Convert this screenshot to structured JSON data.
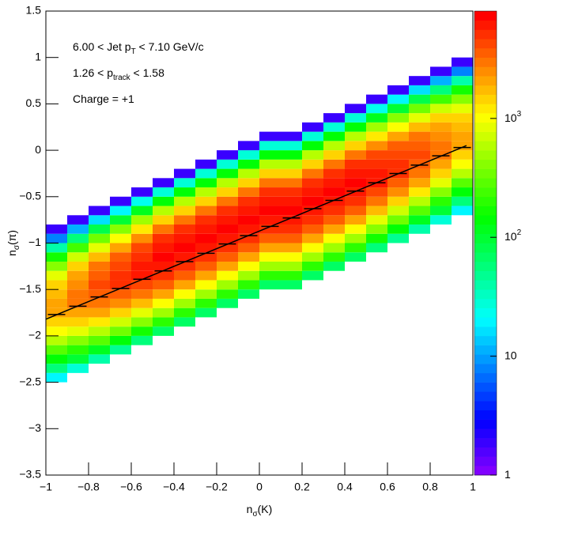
{
  "chart_data": {
    "type": "heatmap",
    "annotations": [
      [
        {
          "t": "6.00 < Jet p"
        },
        {
          "t": "T",
          "sub": true
        },
        {
          "t": " < 7.10 GeV/c"
        }
      ],
      [
        {
          "t": "1.26 < p"
        },
        {
          "t": "track",
          "sub": true
        },
        {
          "t": " < 1.58"
        }
      ],
      [
        {
          "t": "Charge = +1"
        }
      ]
    ],
    "x_label": [
      {
        "t": "n"
      },
      {
        "t": "σ",
        "sub": true
      },
      {
        "t": "(K)"
      }
    ],
    "y_label": [
      {
        "t": "n"
      },
      {
        "t": "σ",
        "sub": true
      },
      {
        "t": "(π)"
      }
    ],
    "xlim": [
      -1,
      1
    ],
    "ylim": [
      -3.5,
      1.5
    ],
    "xticks": [
      {
        "value": -1,
        "label": "−1"
      },
      {
        "value": -0.8,
        "label": "−0.8"
      },
      {
        "value": -0.6,
        "label": "−0.6"
      },
      {
        "value": -0.4,
        "label": "−0.4"
      },
      {
        "value": -0.2,
        "label": "−0.2"
      },
      0,
      0.2,
      0.4,
      0.6,
      0.8,
      1
    ],
    "yticks": [
      1.5,
      1,
      0.5,
      0,
      {
        "value": -0.5,
        "label": "−0.5"
      },
      {
        "value": -1,
        "label": "−1"
      },
      {
        "value": -1.5,
        "label": "−1.5"
      },
      {
        "value": -2,
        "label": "−2"
      },
      {
        "value": -2.5,
        "label": "−2.5"
      },
      {
        "value": -3,
        "label": "−3"
      },
      {
        "value": -3.5,
        "label": "−3.5"
      }
    ],
    "zlim": [
      1,
      8000
    ],
    "zlog": true,
    "palette": "rainbow",
    "zticks": [
      {
        "value": 1,
        "label": "1"
      },
      {
        "value": 10,
        "label": "10"
      },
      {
        "value": 100,
        "label": "10",
        "sup": "2"
      },
      {
        "value": 1000,
        "label": "10",
        "sup": "3"
      }
    ],
    "ybin": 0.1,
    "columns": [
      {
        "x0": -1,
        "x1": -0.9,
        "y0": -2.5,
        "values": [
          20,
          60,
          140,
          300,
          600,
          1000,
          1500,
          1900,
          2000,
          1800,
          1400,
          900,
          440,
          160,
          40,
          8,
          2
        ]
      },
      {
        "x0": -0.9,
        "x1": -0.8,
        "y0": -2.4,
        "values": [
          30,
          90,
          210,
          450,
          900,
          1500,
          2250,
          2850,
          3000,
          2700,
          2100,
          1350,
          660,
          240,
          60,
          12,
          2
        ]
      },
      {
        "x0": -0.8,
        "x1": -0.7,
        "y0": -2.3,
        "values": [
          40,
          120,
          280,
          600,
          1200,
          2000,
          3000,
          3800,
          4000,
          3600,
          2800,
          1800,
          880,
          320,
          80,
          16,
          2
        ]
      },
      {
        "x0": -0.7,
        "x1": -0.6,
        "y0": -2.2,
        "values": [
          50,
          150,
          350,
          750,
          1500,
          2500,
          3750,
          4750,
          5000,
          4500,
          3500,
          2250,
          1100,
          400,
          100,
          20,
          2
        ]
      },
      {
        "x0": -0.6,
        "x1": -0.5,
        "y0": -2.1,
        "values": [
          60,
          180,
          420,
          900,
          1800,
          3000,
          4500,
          5700,
          6000,
          5400,
          4200,
          2700,
          1320,
          480,
          120,
          24,
          2
        ]
      },
      {
        "x0": -0.5,
        "x1": -0.4,
        "y0": -2.0,
        "values": [
          70,
          210,
          490,
          1050,
          2100,
          3500,
          5250,
          6650,
          7000,
          6300,
          4900,
          3150,
          1540,
          560,
          140,
          28,
          2
        ]
      },
      {
        "x0": -0.4,
        "x1": -0.3,
        "y0": -1.9,
        "values": [
          70,
          210,
          490,
          1050,
          2100,
          3500,
          5250,
          6650,
          7000,
          6300,
          4900,
          3150,
          1540,
          560,
          140,
          28,
          2
        ]
      },
      {
        "x0": -0.3,
        "x1": -0.2,
        "y0": -1.8,
        "values": [
          70,
          210,
          490,
          1050,
          2100,
          3500,
          5250,
          6650,
          7000,
          6300,
          4900,
          3150,
          1540,
          560,
          140,
          28,
          2
        ]
      },
      {
        "x0": -0.2,
        "x1": -0.1,
        "y0": -1.7,
        "values": [
          70,
          210,
          490,
          1050,
          2100,
          3500,
          5250,
          6650,
          7000,
          6300,
          4900,
          3150,
          1540,
          560,
          140,
          28,
          2
        ]
      },
      {
        "x0": -0.1,
        "x1": 0,
        "y0": -1.6,
        "values": [
          70,
          210,
          490,
          1050,
          2100,
          3500,
          5250,
          6650,
          7000,
          6300,
          4900,
          3150,
          1540,
          560,
          140,
          28,
          2
        ]
      },
      {
        "x0": 0,
        "x1": 0.1,
        "y0": -1.5,
        "values": [
          70,
          210,
          490,
          1050,
          2100,
          3500,
          5250,
          6650,
          7000,
          6300,
          4900,
          3150,
          1540,
          560,
          140,
          28,
          2
        ]
      },
      {
        "x0": 0.1,
        "x1": 0.2,
        "y0": -1.5,
        "values": [
          70,
          210,
          490,
          1050,
          2100,
          3500,
          5250,
          6650,
          7000,
          6300,
          4900,
          3150,
          1540,
          560,
          140,
          28,
          2
        ]
      },
      {
        "x0": 0.2,
        "x1": 0.3,
        "y0": -1.4,
        "values": [
          70,
          210,
          490,
          1050,
          2100,
          3500,
          5250,
          6650,
          7000,
          6300,
          4900,
          3150,
          1540,
          560,
          140,
          28,
          2
        ]
      },
      {
        "x0": 0.3,
        "x1": 0.4,
        "y0": -1.3,
        "values": [
          70,
          210,
          490,
          1050,
          2100,
          3500,
          5250,
          6650,
          7000,
          6300,
          4900,
          3150,
          1540,
          560,
          140,
          28,
          2
        ]
      },
      {
        "x0": 0.4,
        "x1": 0.5,
        "y0": -1.2,
        "values": [
          70,
          210,
          490,
          1050,
          2100,
          3500,
          5250,
          6650,
          7000,
          6300,
          4900,
          3150,
          1540,
          560,
          140,
          28,
          2
        ]
      },
      {
        "x0": 0.5,
        "x1": 0.6,
        "y0": -1.1,
        "values": [
          60,
          180,
          420,
          900,
          1800,
          3000,
          4500,
          5700,
          6000,
          5400,
          4200,
          2700,
          1320,
          480,
          120,
          24,
          2
        ]
      },
      {
        "x0": 0.6,
        "x1": 0.7,
        "y0": -1.0,
        "values": [
          50,
          150,
          350,
          750,
          1500,
          2500,
          3750,
          4750,
          5000,
          4500,
          3500,
          2250,
          1100,
          400,
          100,
          20,
          2
        ]
      },
      {
        "x0": 0.7,
        "x1": 0.8,
        "y0": -0.9,
        "values": [
          40,
          120,
          280,
          600,
          1200,
          2000,
          3000,
          3800,
          4000,
          3600,
          2800,
          1800,
          880,
          320,
          80,
          16,
          2
        ]
      },
      {
        "x0": 0.8,
        "x1": 0.9,
        "y0": -0.8,
        "values": [
          30,
          90,
          210,
          450,
          900,
          1500,
          2250,
          2850,
          3000,
          2700,
          2100,
          1350,
          660,
          240,
          60,
          12,
          2
        ]
      },
      {
        "x0": 0.9,
        "x1": 1,
        "y0": -0.7,
        "values": [
          20,
          60,
          140,
          300,
          600,
          1000,
          1500,
          1900,
          2000,
          1800,
          1400,
          900,
          440,
          160,
          40,
          8,
          2
        ]
      }
    ],
    "profile": {
      "x": [
        -0.95,
        -0.85,
        -0.75,
        -0.65,
        -0.55,
        -0.45,
        -0.35,
        -0.25,
        -0.15,
        -0.05,
        0.05,
        0.15,
        0.25,
        0.35,
        0.45,
        0.55,
        0.65,
        0.75,
        0.85,
        0.95
      ],
      "y": [
        -1.77,
        -1.68,
        -1.58,
        -1.49,
        -1.39,
        -1.3,
        -1.2,
        -1.11,
        -1.01,
        -0.92,
        -0.82,
        -0.73,
        -0.63,
        -0.54,
        -0.44,
        -0.35,
        -0.25,
        -0.16,
        -0.06,
        0.03
      ]
    },
    "fit": {
      "x": [
        -1,
        0.97
      ],
      "y": [
        -1.82,
        0.05
      ]
    }
  }
}
